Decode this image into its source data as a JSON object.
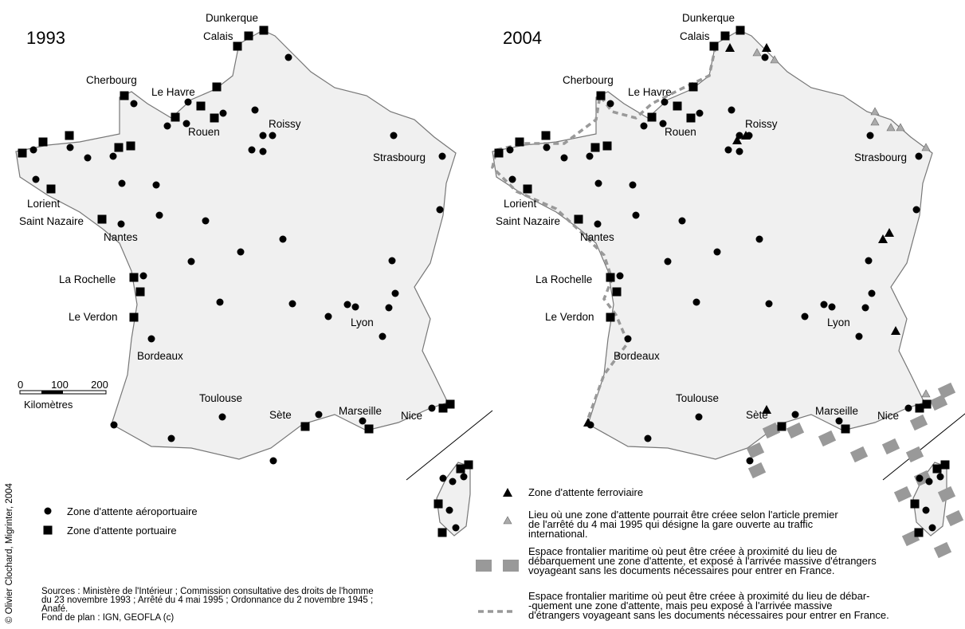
{
  "maps": [
    {
      "year": "1993",
      "cities": [
        "Dunkerque",
        "Calais",
        "Cherbourg",
        "Le Havre",
        "Rouen",
        "Roissy",
        "Strasbourg",
        "Lorient",
        "Saint Nazaire",
        "Nantes",
        "La Rochelle",
        "Le Verdon",
        "Bordeaux",
        "Lyon",
        "Toulouse",
        "Sète",
        "Marseille",
        "Nice"
      ]
    },
    {
      "year": "2004",
      "cities": [
        "Dunkerque",
        "Calais",
        "Cherbourg",
        "Le Havre",
        "Rouen",
        "Roissy",
        "Strasbourg",
        "Lorient",
        "Saint Nazaire",
        "Nantes",
        "La Rochelle",
        "Le Verdon",
        "Bordeaux",
        "Lyon",
        "Toulouse",
        "Sète",
        "Marseille",
        "Nice"
      ]
    }
  ],
  "scale": {
    "ticks": [
      "0",
      "100",
      "200"
    ],
    "unit": "Kilomètres"
  },
  "legend_left": [
    "Zone d'attente aéroportuaire",
    "Zone d'attente portuaire"
  ],
  "legend_right": [
    [
      "Zone d'attente ferroviaire"
    ],
    [
      "Lieu où une zone d'attente pourrait être créee selon l'article premier",
      "de l'arrêté du 4 mai 1995 qui désigne la gare ouverte au traffic",
      "international."
    ],
    [
      "Espace frontalier maritime où peut être créee à proximité du lieu de",
      "débarquement une zone d'attente, et exposé à l'arrivée massive d'étrangers",
      "voyageant sans les documents nécessaires pour entrer en France."
    ],
    [
      "Espace frontalier maritime où peut être créee à proximité du lieu de débar-",
      "-quement une zone d'attente, mais peu exposé à l'arrivée massive",
      "d'étrangers voyageant sans les documents nécessaires pour entrer en France."
    ]
  ],
  "sources": [
    "Sources : Ministère de l'Intérieur ; Commission consultative des droits de l'homme",
    "du 23 novembre 1993 ; Arrêté du 4 mai 1995 ; Ordonnance du 2 novembre 1945 ;",
    "Anafé.",
    "Fond de plan :  IGN,  GEOFLA (c)"
  ],
  "credit": "© Olivier Clochard, Migrinter, 2004"
}
